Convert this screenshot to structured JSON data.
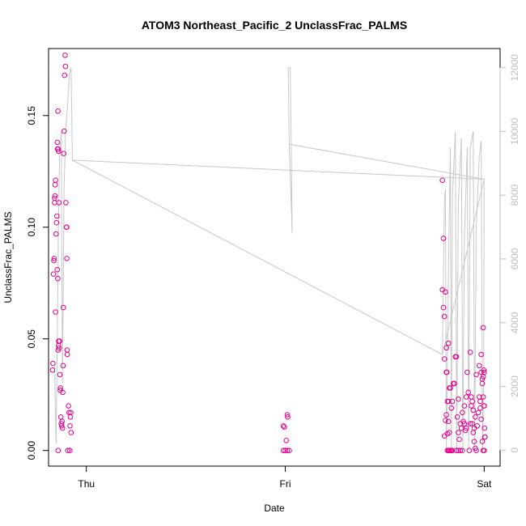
{
  "chart_data": {
    "type": "scatter",
    "title": "ATOM3 Northeast_Pacific_2 UnclassFrac_PALMS",
    "xlabel": "Date",
    "ylabel": "UnclassFrac_PALMS",
    "x_ticks": [
      {
        "value": 0.0,
        "label": "Thu"
      },
      {
        "value": 1.0,
        "label": "Fri"
      },
      {
        "value": 2.0,
        "label": "Sat"
      }
    ],
    "xlim": [
      -0.19,
      2.08
    ],
    "ylim": [
      -0.007,
      0.18
    ],
    "y_ticks": [
      0.0,
      0.05,
      0.1,
      0.15
    ],
    "y2lim": [
      -500,
      12600
    ],
    "y2_ticks": [
      0,
      2000,
      4000,
      6000,
      8000,
      10000,
      12000
    ],
    "grid": false,
    "series": [
      {
        "kind": "points",
        "axis": "left",
        "color": "#e6008c",
        "points": [
          [
            -0.17,
            0.036
          ],
          [
            -0.168,
            0.039
          ],
          [
            -0.165,
            0.079
          ],
          [
            -0.163,
            0.085
          ],
          [
            -0.162,
            0.086
          ],
          [
            -0.16,
            0.111
          ],
          [
            -0.16,
            0.113
          ],
          [
            -0.158,
            0.114
          ],
          [
            -0.157,
            0.119
          ],
          [
            -0.155,
            0.121
          ],
          [
            -0.155,
            0.062
          ],
          [
            -0.152,
            0.097
          ],
          [
            -0.15,
            0.102
          ],
          [
            -0.148,
            0.105
          ],
          [
            -0.146,
            0.138
          ],
          [
            -0.145,
            0.135
          ],
          [
            -0.143,
            0.152
          ],
          [
            -0.142,
            0.135
          ],
          [
            -0.14,
            0.134
          ],
          [
            -0.138,
            0.111
          ],
          [
            -0.146,
            0.081
          ],
          [
            -0.144,
            0.077
          ],
          [
            -0.142,
            0.045
          ],
          [
            -0.14,
            0.047
          ],
          [
            -0.139,
            0.049
          ],
          [
            -0.137,
            0.046
          ],
          [
            -0.135,
            0.049
          ],
          [
            -0.133,
            0.034
          ],
          [
            -0.131,
            0.027
          ],
          [
            -0.13,
            0.028
          ],
          [
            -0.128,
            0.015
          ],
          [
            -0.126,
            0.012
          ],
          [
            -0.124,
            0.011
          ],
          [
            -0.122,
            0.013
          ],
          [
            -0.12,
            0.01
          ],
          [
            -0.142,
            0.0
          ],
          [
            -0.119,
            0.026
          ],
          [
            -0.117,
            0.038
          ],
          [
            -0.116,
            0.064
          ],
          [
            -0.114,
            0.133
          ],
          [
            -0.112,
            0.143
          ],
          [
            -0.11,
            0.168
          ],
          [
            -0.107,
            0.177
          ],
          [
            -0.105,
            0.172
          ],
          [
            -0.103,
            0.111
          ],
          [
            -0.1,
            0.1
          ],
          [
            -0.099,
            0.1
          ],
          [
            -0.098,
            0.086
          ],
          [
            -0.097,
            0.045
          ],
          [
            -0.096,
            0.043
          ],
          [
            -0.093,
            0.0
          ],
          [
            -0.09,
            0.02
          ],
          [
            -0.087,
            0.017
          ],
          [
            -0.083,
            0.0
          ],
          [
            -0.082,
            0.011
          ],
          [
            -0.08,
            0.015
          ],
          [
            -0.078,
            0.017
          ],
          [
            -0.077,
            0.008
          ],
          [
            0.99,
            0.0
          ],
          [
            1.0,
            0.0
          ],
          [
            1.01,
            0.0
          ],
          [
            0.99,
            0.011
          ],
          [
            0.995,
            0.0105
          ],
          [
            1.005,
            0.0045
          ],
          [
            1.01,
            0.016
          ],
          [
            1.012,
            0.015
          ],
          [
            1.02,
            0.0
          ],
          [
            1.79,
            0.121
          ],
          [
            1.795,
            0.095
          ],
          [
            1.79,
            0.072
          ],
          [
            1.795,
            0.064
          ],
          [
            1.8,
            0.06
          ],
          [
            1.805,
            0.071
          ],
          [
            1.81,
            0.046
          ],
          [
            1.82,
            0.048
          ],
          [
            1.8,
            0.041
          ],
          [
            1.81,
            0.035
          ],
          [
            1.812,
            0.035
          ],
          [
            1.81,
            0.016
          ],
          [
            1.8,
            0.0065
          ],
          [
            1.805,
            0.0135
          ],
          [
            1.815,
            0.022
          ],
          [
            1.82,
            0.022
          ],
          [
            1.82,
            0.013
          ],
          [
            1.815,
            0.0075
          ],
          [
            1.825,
            0.008
          ],
          [
            1.815,
            0.0
          ],
          [
            1.82,
            0.0
          ],
          [
            1.825,
            0.0
          ],
          [
            1.83,
            0.0
          ],
          [
            1.835,
            0.0
          ],
          [
            1.84,
            0.0
          ],
          [
            1.825,
            0.028
          ],
          [
            1.83,
            0.028
          ],
          [
            1.835,
            0.019
          ],
          [
            1.84,
            0.022
          ],
          [
            1.845,
            0.03
          ],
          [
            1.85,
            0.03
          ],
          [
            1.855,
            0.042
          ],
          [
            1.86,
            0.042
          ],
          [
            1.86,
            0.0
          ],
          [
            1.865,
            0.015
          ],
          [
            1.87,
            0.008
          ],
          [
            1.87,
            0.0
          ],
          [
            1.875,
            0.005
          ],
          [
            1.88,
            0.012
          ],
          [
            1.88,
            0.0
          ],
          [
            1.885,
            0.01
          ],
          [
            1.89,
            0.017
          ],
          [
            1.89,
            0.0
          ],
          [
            1.895,
            0.013
          ],
          [
            1.9,
            0.012
          ],
          [
            1.9,
            0.02
          ],
          [
            1.905,
            0.009
          ],
          [
            1.91,
            0.01
          ],
          [
            1.915,
            0.035
          ],
          [
            1.92,
            0.026
          ],
          [
            1.925,
            0.0
          ],
          [
            1.93,
            0.012
          ],
          [
            1.935,
            0.02
          ],
          [
            1.94,
            0.012
          ],
          [
            1.94,
            0.022
          ],
          [
            1.945,
            0.008
          ],
          [
            1.95,
            0.004
          ],
          [
            1.955,
            0.001
          ],
          [
            1.96,
            0.0
          ],
          [
            1.96,
            0.034
          ],
          [
            1.965,
            0.011
          ],
          [
            1.97,
            0.017
          ],
          [
            1.975,
            0.024
          ],
          [
            1.98,
            0.019
          ],
          [
            1.985,
            0.014
          ],
          [
            1.99,
            0.004
          ],
          [
            1.995,
            0.0
          ],
          [
            2.0,
            0.0
          ],
          [
            1.975,
            0.038
          ],
          [
            1.98,
            0.022
          ],
          [
            1.985,
            0.035
          ],
          [
            1.99,
            0.03
          ],
          [
            1.995,
            0.024
          ],
          [
            2.0,
            0.02
          ],
          [
            1.995,
            0.033
          ],
          [
            1.985,
            0.043
          ],
          [
            1.99,
            0.032
          ],
          [
            1.998,
            0.036
          ],
          [
            2.0,
            0.035
          ],
          [
            2.002,
            0.01
          ],
          [
            2.004,
            0.006
          ],
          [
            1.995,
            0.055
          ],
          [
            1.999,
            0.02
          ],
          [
            2.003,
            0.006
          ],
          [
            1.95,
            0.01
          ],
          [
            1.955,
            0.015
          ],
          [
            1.945,
            0.018
          ],
          [
            1.935,
            0.024
          ],
          [
            1.93,
            0.044
          ],
          [
            1.91,
            0.024
          ],
          [
            1.87,
            0.023
          ]
        ]
      },
      {
        "kind": "line",
        "axis": "right",
        "color": "#c8c8c8",
        "points": [
          [
            -0.16,
            2700
          ],
          [
            -0.152,
            200
          ],
          [
            -0.146,
            3400
          ],
          [
            -0.141,
            6500
          ],
          [
            -0.135,
            9200
          ],
          [
            -0.126,
            10000
          ],
          [
            -0.12,
            2100
          ],
          [
            -0.112,
            8200
          ],
          [
            -0.104,
            10000
          ],
          [
            -0.095,
            10800
          ],
          [
            -0.085,
            11800
          ],
          [
            -0.077,
            12000
          ],
          [
            -0.07,
            9100
          ],
          [
            1.79,
            3000
          ],
          [
            1.8,
            7800
          ],
          [
            1.805,
            8200
          ],
          [
            1.81,
            0
          ],
          [
            1.82,
            5500
          ],
          [
            1.83,
            9500
          ],
          [
            1.835,
            0
          ],
          [
            1.84,
            7900
          ],
          [
            1.855,
            10000
          ],
          [
            1.862,
            0
          ],
          [
            1.87,
            7800
          ],
          [
            1.885,
            9800
          ],
          [
            1.893,
            0
          ],
          [
            1.9,
            6500
          ],
          [
            1.915,
            9500
          ],
          [
            1.922,
            0
          ],
          [
            1.93,
            9500
          ],
          [
            1.945,
            10000
          ],
          [
            1.952,
            0
          ],
          [
            1.96,
            7000
          ],
          [
            1.975,
            9200
          ],
          [
            1.985,
            9700
          ],
          [
            1.992,
            0
          ],
          [
            1.998,
            2200
          ],
          [
            2.0,
            8500
          ],
          [
            -0.07,
            9100
          ],
          [
            1.79,
            3000
          ],
          [
            2.0,
            8500
          ],
          [
            1.02,
            9600
          ],
          [
            1.015,
            12000
          ],
          [
            1.025,
            12000
          ],
          [
            1.035,
            6800
          ],
          [
            1.02,
            9600
          ]
        ]
      }
    ]
  }
}
